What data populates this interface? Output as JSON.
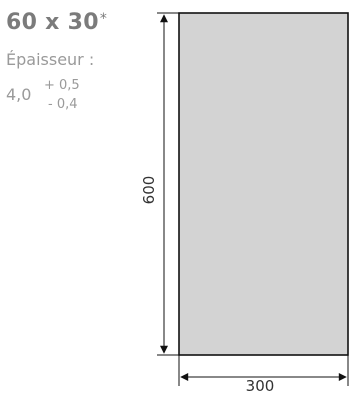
{
  "format": {
    "size": "60 x 30",
    "asterisk": "*"
  },
  "thickness": {
    "label": "Épaisseur :",
    "nominal": "4,0",
    "tolerance_plus": "+ 0,5",
    "tolerance_minus": "- 0,4"
  },
  "dimensions": {
    "height": "600",
    "width": "300"
  },
  "colors": {
    "tile_fill": "#d3d3d3",
    "tile_border": "#111111",
    "text_grey": "#9a9a9a",
    "title_grey": "#7b7b7b"
  }
}
